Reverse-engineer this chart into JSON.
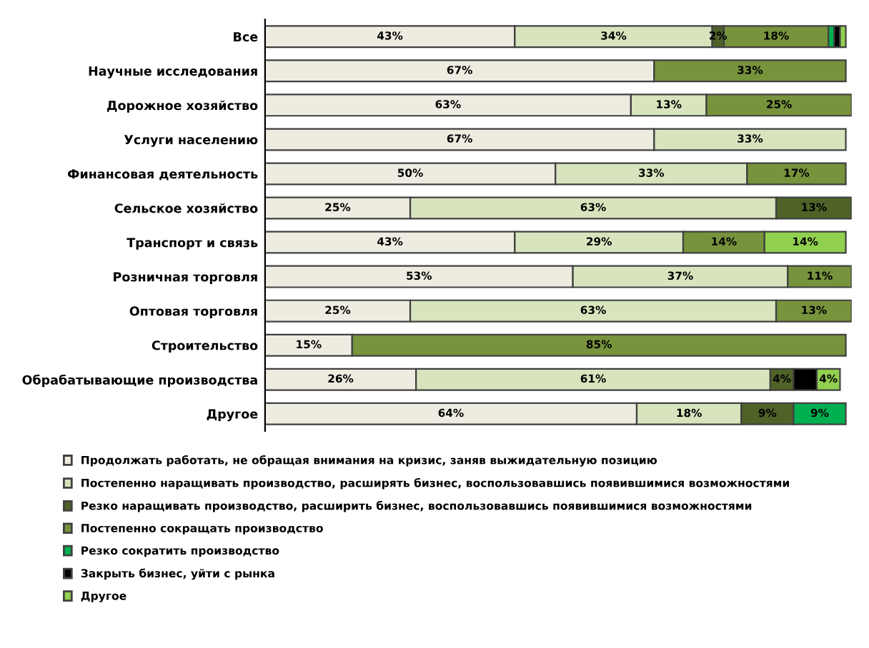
{
  "chart_data": {
    "type": "bar",
    "orientation": "horizontal",
    "stacked": true,
    "legend": "bottom",
    "grid": false,
    "tick_labels": "y",
    "categories": [
      "Все",
      "Научные исследования",
      "Дорожное хозяйство",
      "Услуги населению",
      "Финансовая деятельность",
      "Сельское хозяйство",
      "Транспорт и связь",
      "Розничная торговля",
      "Оптовая торговля",
      "Строительство",
      "Обрабатывающие производства",
      "Другое"
    ],
    "series": [
      {
        "name": "Продолжать работать, не обращая внимания на кризис, заняв выжидательную позицию",
        "color": "#eeece1",
        "values": [
          43,
          67,
          63,
          67,
          50,
          25,
          43,
          53,
          25,
          15,
          26,
          64
        ],
        "value_labels": [
          "43%",
          "67%",
          "63%",
          "67%",
          "50%",
          "25%",
          "43%",
          "53%",
          "25%",
          "15%",
          "26%",
          "64%"
        ]
      },
      {
        "name": "Постепенно наращивать производство, расширять бизнес, воспользовавшись появившимися возможностями",
        "color": "#d7e4bd",
        "values": [
          34,
          null,
          13,
          33,
          33,
          63,
          29,
          37,
          63,
          null,
          61,
          18
        ],
        "value_labels": [
          "34%",
          null,
          "13%",
          "33%",
          "33%",
          "63%",
          "29%",
          "37%",
          "63%",
          null,
          "61%",
          "18%"
        ]
      },
      {
        "name": "Резко наращивать производство, расширить бизнес, воспользовавшись появившимися возможностями",
        "color": "#4f6228",
        "values": [
          2,
          null,
          null,
          null,
          null,
          13,
          null,
          null,
          null,
          null,
          4,
          9
        ],
        "value_labels": [
          "2%",
          null,
          null,
          null,
          null,
          "13%",
          null,
          null,
          null,
          null,
          "4%",
          "9%"
        ]
      },
      {
        "name": "Постепенно сокращать производство",
        "color": "#77933c",
        "values": [
          18,
          33,
          25,
          null,
          17,
          null,
          14,
          11,
          13,
          85,
          null,
          null
        ],
        "value_labels": [
          "18%",
          "33%",
          "25%",
          null,
          "17%",
          null,
          "14%",
          "11%",
          "13%",
          "85%",
          null,
          null
        ]
      },
      {
        "name": "Резко сократить производство",
        "color": "#00b050",
        "values": [
          1,
          null,
          null,
          null,
          null,
          null,
          null,
          null,
          null,
          null,
          null,
          9
        ],
        "value_labels": [
          null,
          null,
          null,
          null,
          null,
          null,
          null,
          null,
          null,
          null,
          null,
          "9%"
        ]
      },
      {
        "name": "Закрыть бизнес, уйти с рынка",
        "color": "#000000",
        "values": [
          1,
          null,
          null,
          null,
          null,
          null,
          null,
          null,
          null,
          null,
          4,
          null
        ],
        "value_labels": [
          null,
          null,
          null,
          null,
          null,
          null,
          null,
          null,
          null,
          null,
          null,
          null
        ]
      },
      {
        "name": "Другое",
        "color": "#92d050",
        "values": [
          1,
          null,
          null,
          null,
          null,
          null,
          14,
          null,
          null,
          null,
          4,
          null
        ],
        "value_labels": [
          null,
          null,
          null,
          null,
          null,
          null,
          "14%",
          null,
          null,
          null,
          "4%",
          null
        ]
      }
    ]
  }
}
